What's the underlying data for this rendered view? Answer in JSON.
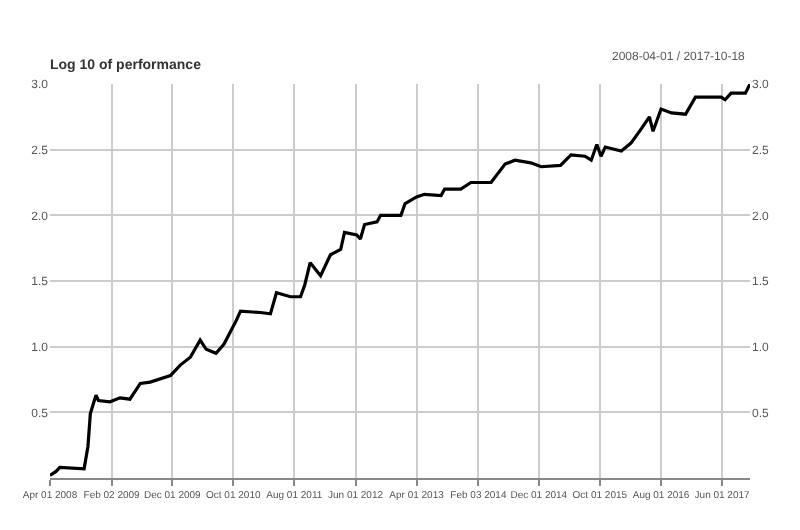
{
  "chart_data": {
    "type": "line",
    "title": "Log 10 of performance",
    "subtitle": "2008-04-01 / 2017-10-18",
    "x": [
      "2008-04-01",
      "2008-05-01",
      "2008-05-20",
      "2008-09-18",
      "2008-10-07",
      "2008-10-19",
      "2008-11-16",
      "2008-11-28",
      "2009-01-25",
      "2009-03-16",
      "2009-05-04",
      "2009-06-25",
      "2009-08-13",
      "2009-11-22",
      "2010-01-10",
      "2010-03-01",
      "2010-04-19",
      "2010-05-19",
      "2010-07-07",
      "2010-08-16",
      "2010-10-16",
      "2010-11-06",
      "2011-02-13",
      "2011-04-04",
      "2011-05-04",
      "2011-07-13",
      "2011-09-01",
      "2011-09-22",
      "2011-10-19",
      "2011-11-19",
      "2011-12-10",
      "2012-01-28",
      "2012-03-19",
      "2012-04-07",
      "2012-06-07",
      "2012-06-25",
      "2012-07-16",
      "2012-09-16",
      "2012-10-04",
      "2013-01-13",
      "2013-02-03",
      "2013-04-01",
      "2013-05-10",
      "2013-08-01",
      "2013-08-19",
      "2013-11-07",
      "2013-12-28",
      "2014-04-07",
      "2014-06-16",
      "2014-08-04",
      "2014-10-22",
      "2014-12-13",
      "2015-03-19",
      "2015-05-10",
      "2015-07-19",
      "2015-08-19",
      "2015-09-16",
      "2015-10-07",
      "2015-10-28",
      "2016-01-16",
      "2016-03-04",
      "2016-04-25",
      "2016-06-04",
      "2016-06-22",
      "2016-08-01",
      "2016-09-22",
      "2016-12-01",
      "2017-01-19",
      "2017-05-28",
      "2017-06-16",
      "2017-07-16",
      "2017-09-25",
      "2017-10-18"
    ],
    "series": [
      {
        "color": "#000000",
        "values": [
          0.02,
          0.05,
          0.08,
          0.07,
          0.24,
          0.49,
          0.63,
          0.59,
          0.58,
          0.61,
          0.6,
          0.72,
          0.73,
          0.78,
          0.86,
          0.92,
          1.05,
          0.98,
          0.95,
          1.02,
          1.2,
          1.27,
          1.26,
          1.25,
          1.41,
          1.38,
          1.38,
          1.47,
          1.64,
          1.58,
          1.54,
          1.7,
          1.74,
          1.87,
          1.85,
          1.82,
          1.93,
          1.95,
          2.0,
          2.0,
          2.09,
          2.14,
          2.16,
          2.15,
          2.2,
          2.2,
          2.25,
          2.25,
          2.39,
          2.42,
          2.4,
          2.37,
          2.38,
          2.46,
          2.45,
          2.42,
          2.54,
          2.45,
          2.52,
          2.49,
          2.55,
          2.66,
          2.75,
          2.64,
          2.81,
          2.78,
          2.77,
          2.9,
          2.9,
          2.88,
          2.93,
          2.93,
          3.0
        ]
      }
    ],
    "xlim": [
      "2008-04-01",
      "2017-10-18"
    ],
    "xticks": [
      {
        "value": "2008-04-01",
        "label": "Apr 01 2008"
      },
      {
        "value": "2009-02-02",
        "label": "Feb 02 2009"
      },
      {
        "value": "2009-12-01",
        "label": "Dec 01 2009"
      },
      {
        "value": "2010-10-01",
        "label": "Oct 01 2010"
      },
      {
        "value": "2011-08-01",
        "label": "Aug 01 2011"
      },
      {
        "value": "2012-06-01",
        "label": "Jun 01 2012"
      },
      {
        "value": "2013-04-01",
        "label": "Apr 01 2013"
      },
      {
        "value": "2014-02-03",
        "label": "Feb 03 2014"
      },
      {
        "value": "2014-12-01",
        "label": "Dec 01 2014"
      },
      {
        "value": "2015-10-01",
        "label": "Oct 01 2015"
      },
      {
        "value": "2016-08-01",
        "label": "Aug 01 2016"
      },
      {
        "value": "2017-06-01",
        "label": "Jun 01 2017"
      }
    ],
    "ylim": [
      0,
      3.0
    ],
    "yticks": [
      {
        "value": 0.5,
        "label": "0.5"
      },
      {
        "value": 1.0,
        "label": "1.0"
      },
      {
        "value": 1.5,
        "label": "1.5"
      },
      {
        "value": 2.0,
        "label": "2.0"
      },
      {
        "value": 2.5,
        "label": "2.5"
      },
      {
        "value": 3.0,
        "label": "3.0"
      }
    ],
    "y2lim": [
      0,
      3.0
    ],
    "y2ticks": [
      {
        "value": 0.5,
        "label": "0.5"
      },
      {
        "value": 1.0,
        "label": "1.0"
      },
      {
        "value": 1.5,
        "label": "1.5"
      },
      {
        "value": 2.0,
        "label": "2.0"
      },
      {
        "value": 2.5,
        "label": "2.5"
      },
      {
        "value": 3.0,
        "label": "3.0"
      }
    ],
    "grid": true,
    "marker": "none",
    "line_style": "solid"
  }
}
